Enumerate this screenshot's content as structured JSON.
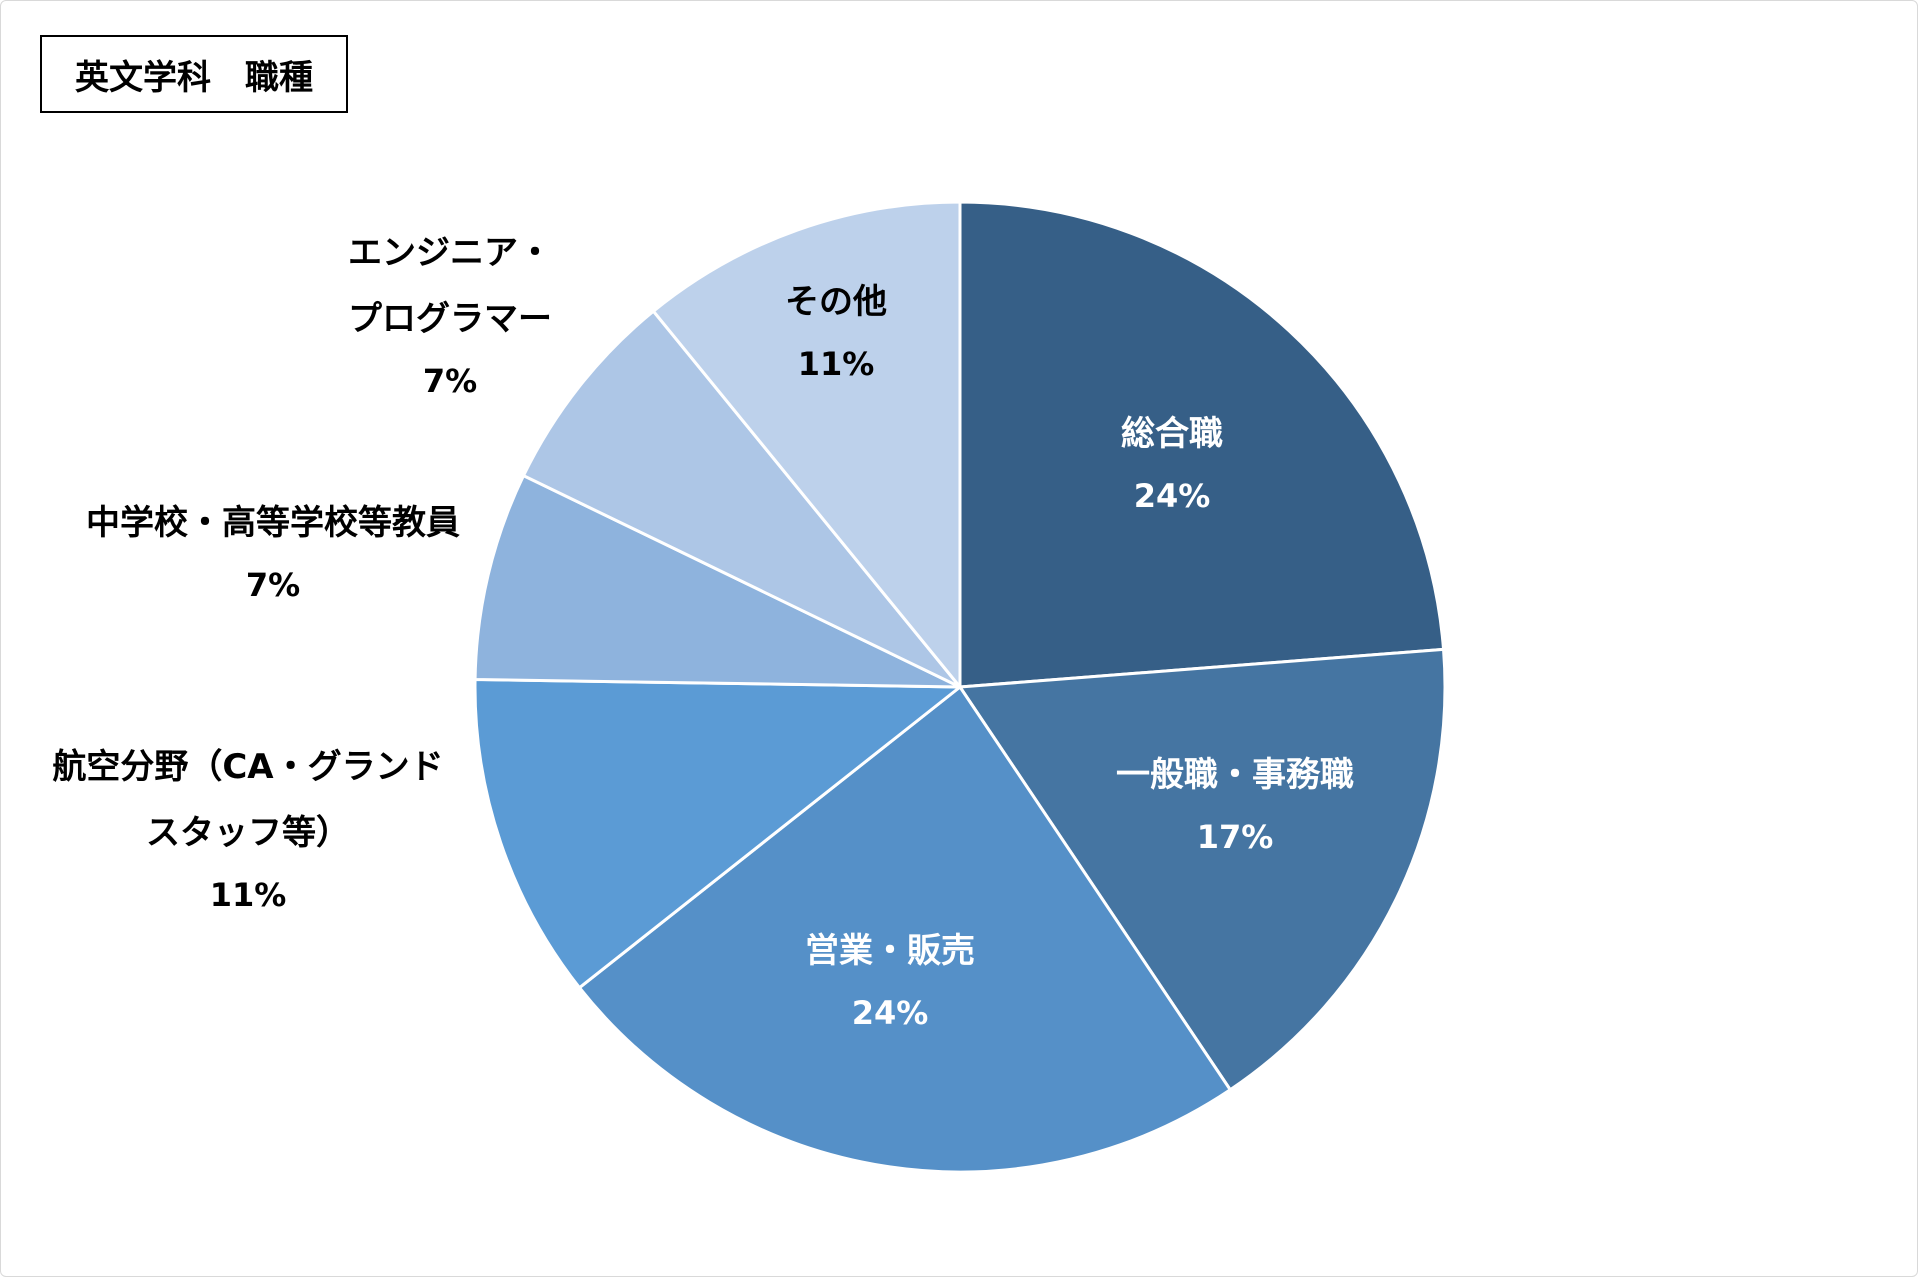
{
  "chart_data": {
    "type": "pie",
    "title": "英文学科　職種",
    "slices": [
      {
        "label": "総合職",
        "value": 24,
        "value_label": "24%",
        "color": "#365f87"
      },
      {
        "label": "一般職・事務職",
        "value": 17,
        "value_label": "17%",
        "color": "#4575a2"
      },
      {
        "label": "営業・販売",
        "value": 24,
        "value_label": "24%",
        "color": "#5590c8"
      },
      {
        "label": "航空分野（CA・グランドスタッフ等）",
        "value": 11,
        "value_label": "11%",
        "color": "#5b9bd5"
      },
      {
        "label": "中学校・高等学校等教員",
        "value": 7,
        "value_label": "7%",
        "color": "#8eb3dd"
      },
      {
        "label": "エンジニア・プログラマー",
        "value": 7,
        "value_label": "7%",
        "color": "#adc6e6"
      },
      {
        "label": "その他",
        "value": 11,
        "value_label": "11%",
        "color": "#bdd1eb"
      }
    ],
    "start_angle": "12-o'clock",
    "direction": "clockwise"
  }
}
